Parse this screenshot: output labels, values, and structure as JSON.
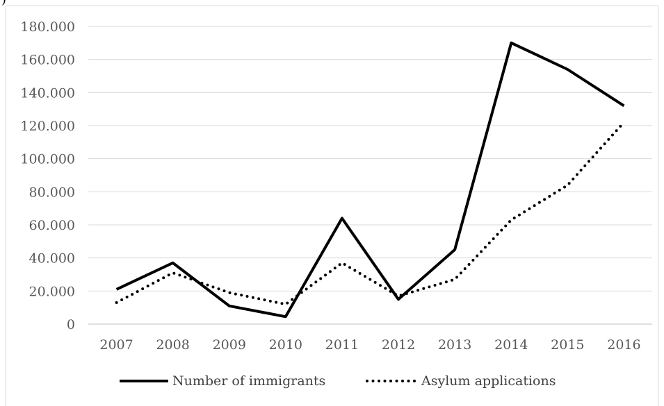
{
  "chart_data": {
    "type": "line",
    "categories": [
      "2007",
      "2008",
      "2009",
      "2010",
      "2011",
      "2012",
      "2013",
      "2014",
      "2015",
      "2016"
    ],
    "ylim": [
      0,
      180000
    ],
    "yticks": [
      0,
      20000,
      40000,
      60000,
      80000,
      100000,
      120000,
      140000,
      160000,
      180000
    ],
    "ytick_labels": [
      "0",
      "20.000",
      "40.000",
      "60.000",
      "80.000",
      "100.000",
      "120.000",
      "140.000",
      "160.000",
      "180.000"
    ],
    "grid": true,
    "legend_position": "bottom",
    "series": [
      {
        "name": "Number of immigrants",
        "style": "solid",
        "color": "#000000",
        "values": [
          21000,
          37000,
          11000,
          4500,
          64000,
          15000,
          45000,
          170000,
          154000,
          132000
        ]
      },
      {
        "name": "Asylum applications",
        "style": "dotted",
        "color": "#000000",
        "values": [
          13000,
          31000,
          19000,
          12000,
          37000,
          17000,
          27000,
          63000,
          84000,
          122000
        ]
      }
    ]
  }
}
